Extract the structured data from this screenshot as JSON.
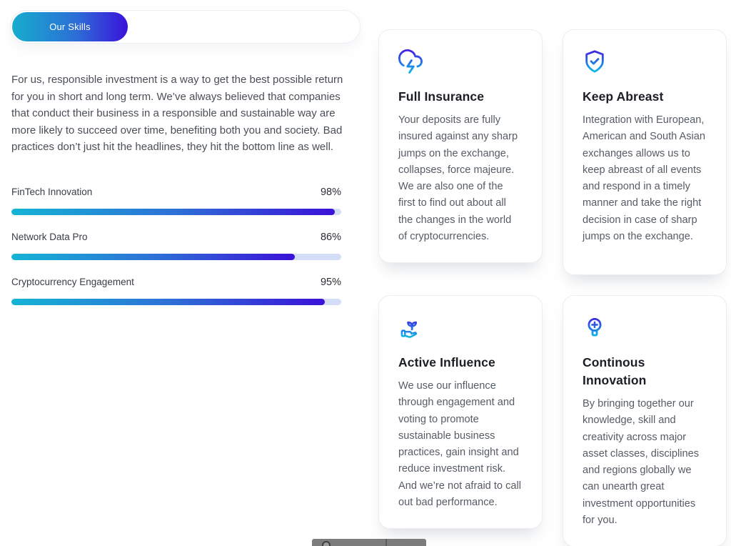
{
  "badge": {
    "label": "Our Skills"
  },
  "intro": "For us, responsible investment is a way to get the best possible return for you in short and long term. We’ve always believed that companies that conduct their business in a responsible and sustainable way are more likely to succeed over time, benefiting both you and society. Bad practices don’t just hit the headlines, they hit the bottom line as well.",
  "chart_data": {
    "type": "bar",
    "categories": [
      "FinTech Innovation",
      "Network Data Pro",
      "Cryptocurrency Engagement"
    ],
    "values": [
      98,
      86,
      95
    ],
    "title": "Our Skills",
    "xlabel": "",
    "ylabel": "",
    "ylim": [
      0,
      100
    ],
    "value_labels": [
      "98%",
      "86%",
      "95%"
    ]
  },
  "skills": {
    "items": [
      {
        "label": "FinTech Innovation",
        "value": "98%",
        "percent": 98
      },
      {
        "label": "Network Data Pro",
        "value": "86%",
        "percent": 86
      },
      {
        "label": "Cryptocurrency Engagement",
        "value": "95%",
        "percent": 95
      }
    ]
  },
  "cards": [
    {
      "icon": "cloud-lightning-icon",
      "title": "Full Insurance",
      "body": "Your deposits are fully insured against any sharp jumps on the exchange, collapses, force majeure. We are also one of the first to find out about all the changes in the world of cryptocurrencies."
    },
    {
      "icon": "shield-check-icon",
      "title": "Keep Abreast",
      "body": "Integration with European, American and South Asian exchanges allows us to keep abreast of all events and respond in a timely manner and take the right decision in case of sharp jumps on the exchange."
    },
    {
      "icon": "hand-sprout-icon",
      "title": "Active Influence",
      "body": "We use our influence through engagement and voting to promote sustainable business practices, gain insight and reduce investment risk. And we’re not afraid to call out bad performance."
    },
    {
      "icon": "lightbulb-plus-icon",
      "title": "Continous Innovation",
      "body": "By bringing together our knowledge, skill and creativity across major asset classes, disciplines and regions globally we can unearth great investment opportunities for you."
    }
  ],
  "colors": {
    "gradient_start": "#15b4d5",
    "gradient_end": "#3a11d8",
    "icon_gradient_top": "#4026e2",
    "icon_gradient_bottom": "#0fb8e8",
    "bar_track": "#d3ddf6",
    "toolbar_gray": "#7c7c7c"
  }
}
